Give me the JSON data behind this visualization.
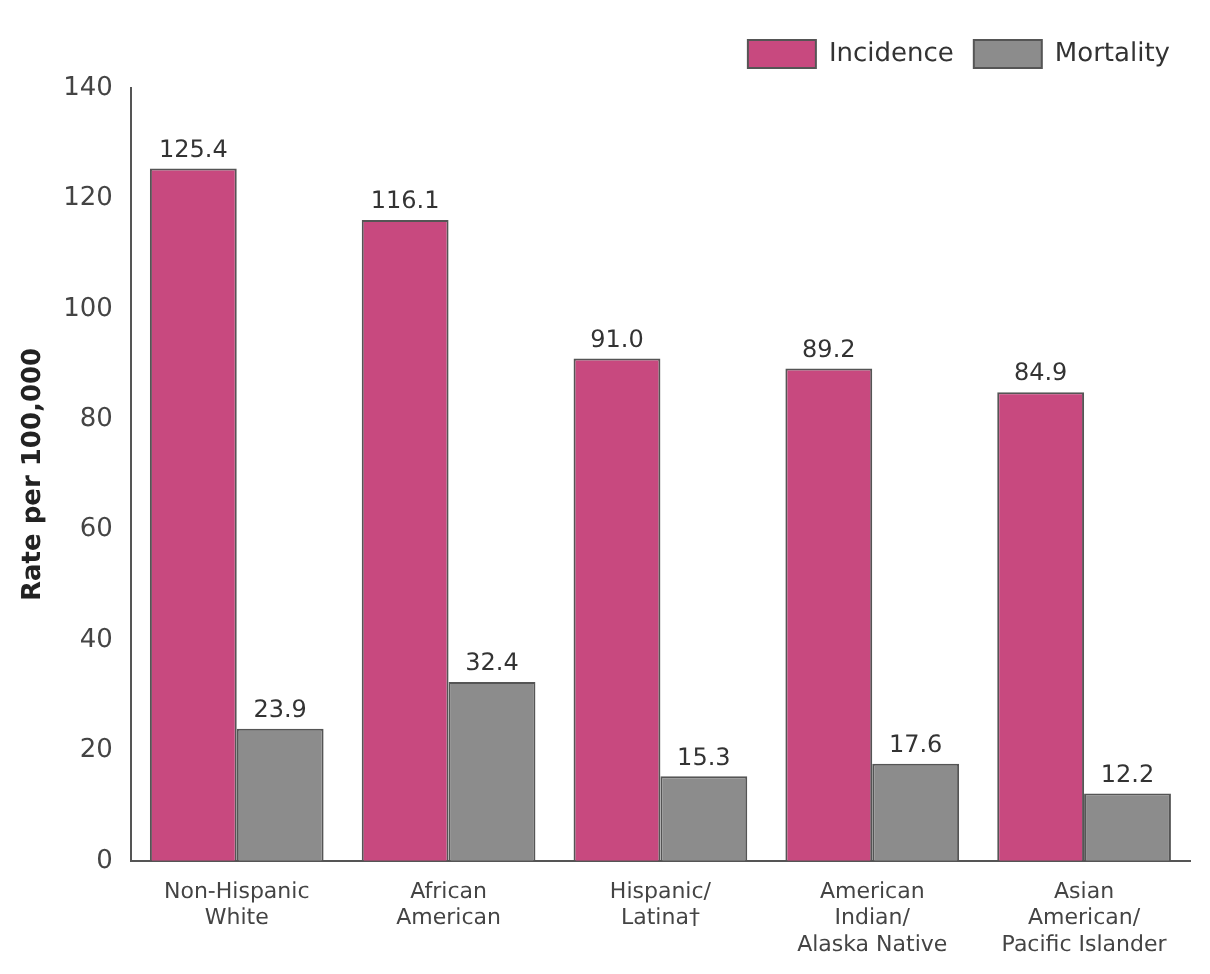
{
  "chart_data": {
    "type": "bar",
    "ylabel": "Rate per 100,000",
    "categories": [
      "Non-Hispanic\nWhite",
      "African\nAmerican",
      "Hispanic/\nLatina†",
      "American\nIndian/\nAlaska Native",
      "Asian\nAmerican/\nPacific Islander"
    ],
    "series": [
      {
        "name": "Incidence",
        "color": "#c8497f",
        "values": [
          125.4,
          116.1,
          91.0,
          89.2,
          84.9
        ],
        "value_labels": [
          "125.4",
          "116.1",
          "91.0",
          "89.2",
          "84.9"
        ]
      },
      {
        "name": "Mortality",
        "color": "#8c8c8c",
        "values": [
          23.9,
          32.4,
          15.3,
          17.6,
          12.2
        ],
        "value_labels": [
          "23.9",
          "32.4",
          "15.3",
          "17.6",
          "12.2"
        ]
      }
    ],
    "ylim": [
      0,
      140
    ],
    "yticks": [
      0,
      20,
      40,
      60,
      80,
      100,
      120,
      140
    ],
    "grid": false,
    "legend": "top right"
  }
}
